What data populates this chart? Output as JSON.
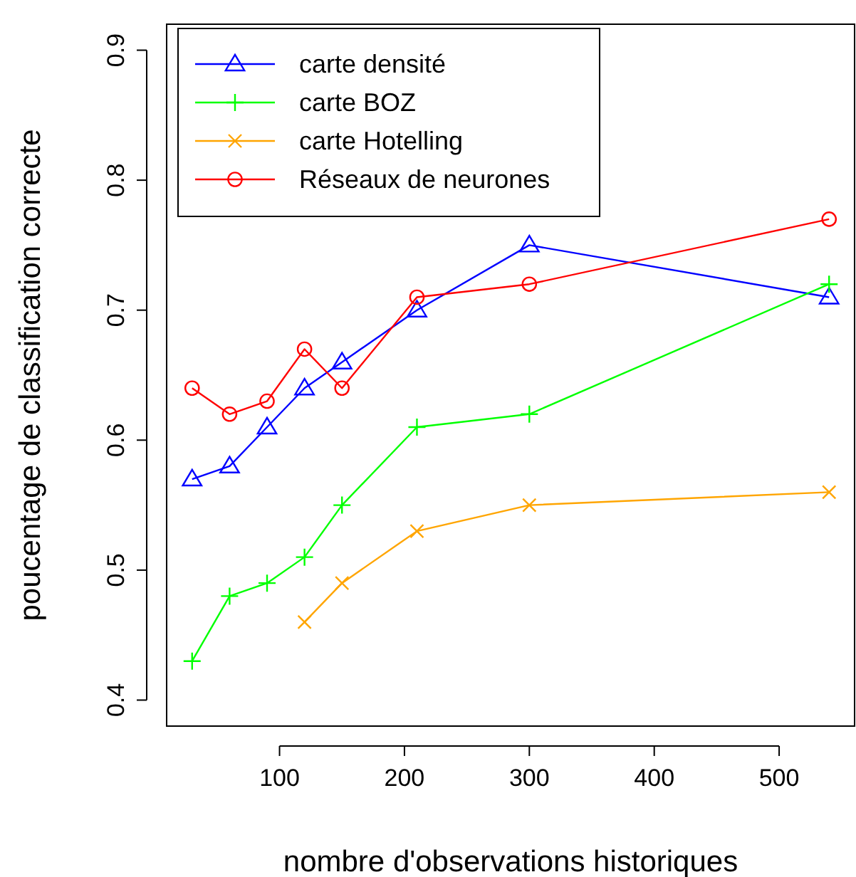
{
  "chart_data": {
    "type": "line",
    "xlabel": "nombre d'observations historiques",
    "ylabel": "poucentage de classification correcte",
    "x": [
      30,
      60,
      90,
      120,
      150,
      210,
      300,
      540
    ],
    "xlim": [
      9.6,
      560.4
    ],
    "xticks": [
      100,
      200,
      300,
      400,
      500
    ],
    "ylim": [
      0.38,
      0.92
    ],
    "yticks": [
      0.4,
      0.5,
      0.6,
      0.7,
      0.8,
      0.9
    ],
    "grid": false,
    "legend": "top left",
    "series": [
      {
        "name": "carte densité",
        "color": "#0000ff",
        "marker": "triangle",
        "values": [
          0.57,
          0.58,
          0.61,
          0.64,
          0.66,
          0.7,
          0.75,
          0.71
        ]
      },
      {
        "name": "carte BOZ",
        "color": "#00ff00",
        "marker": "plus",
        "values": [
          0.43,
          0.48,
          0.49,
          0.51,
          0.55,
          0.61,
          0.62,
          0.72
        ]
      },
      {
        "name": "carte Hotelling",
        "color": "#ffa500",
        "marker": "cross",
        "values": [
          null,
          null,
          null,
          0.46,
          0.49,
          0.53,
          0.55,
          0.56
        ]
      },
      {
        "name": "Réseaux de neurones",
        "color": "#ff0000",
        "marker": "circle",
        "values": [
          0.64,
          0.62,
          0.63,
          0.67,
          0.64,
          0.71,
          0.72,
          0.77
        ]
      }
    ]
  }
}
